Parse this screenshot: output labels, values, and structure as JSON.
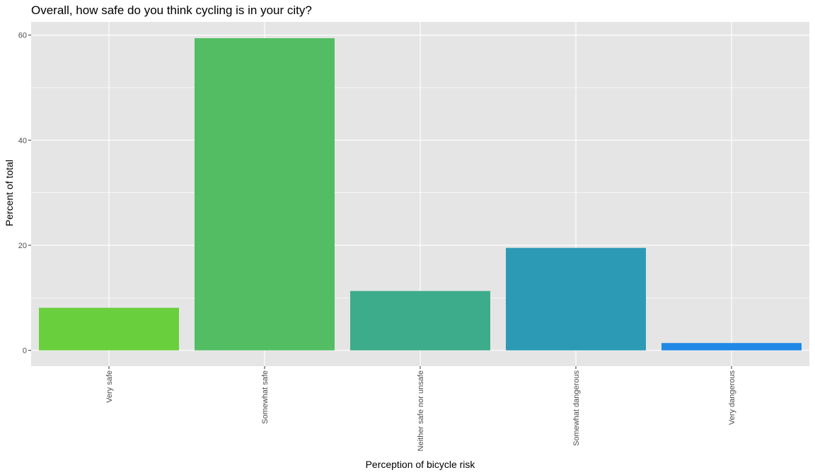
{
  "chart_data": {
    "type": "bar",
    "title": "Overall, how safe do you think cycling is in your city?",
    "xlabel": "Perception of bicycle risk",
    "ylabel": "Percent of total",
    "categories": [
      "Very safe",
      "Somewhat safe",
      "Neither safe nor unsafe",
      "Somewhat dangerous",
      "Very dangerous"
    ],
    "values": [
      8.1,
      59.4,
      11.3,
      19.5,
      1.4
    ],
    "bar_colors": [
      "#6acf3c",
      "#53bd63",
      "#3dac8a",
      "#2d9ab5",
      "#2088e6"
    ],
    "ylim": [
      -3,
      62.5
    ],
    "yticks": [
      0,
      20,
      40,
      60
    ],
    "ytick_labels": [
      "0",
      "20",
      "40",
      "60"
    ],
    "grid": true,
    "panel_background": "#e5e5e5",
    "grid_color": "#ffffff"
  }
}
